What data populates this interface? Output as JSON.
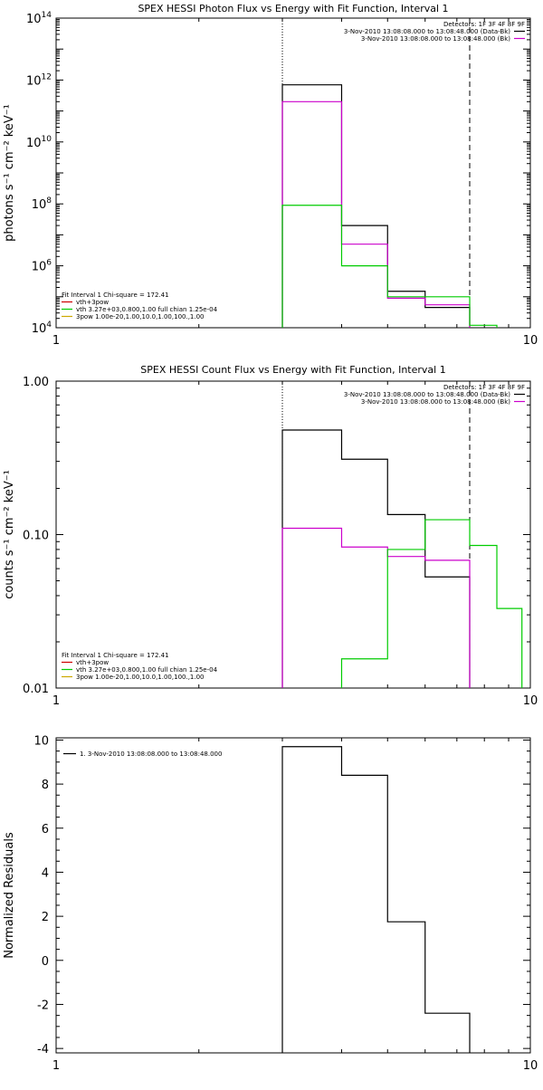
{
  "chart_data": [
    {
      "type": "line",
      "title": "SPEX HESSI Photon Flux vs Energy with Fit Function, Interval 1",
      "ylabel": "photons s⁻¹ cm⁻² keV⁻¹",
      "xlabel": "",
      "xscale": "log",
      "yscale": "log",
      "xlim": [
        1,
        10
      ],
      "ylim": [
        10000,
        100000000000000
      ],
      "x_ticks": [
        {
          "v": 1,
          "label": "1"
        },
        {
          "v": 10,
          "label": "10"
        }
      ],
      "y_ticks": [
        {
          "v": 10000,
          "base": "10",
          "exp": "4"
        },
        {
          "v": 1000000,
          "base": "10",
          "exp": "6"
        },
        {
          "v": 100000000,
          "base": "10",
          "exp": "8"
        },
        {
          "v": 10000000000,
          "base": "10",
          "exp": "10"
        },
        {
          "v": 1000000000000,
          "base": "10",
          "exp": "12"
        },
        {
          "v": 100000000000000,
          "base": "10",
          "exp": "14"
        }
      ],
      "vlines": [
        {
          "x": 3.0,
          "style": "dotted"
        },
        {
          "x": 7.45,
          "style": "dashed"
        }
      ],
      "legend_top_right": {
        "header": "Detectors: 1F 3F 4F 8F 9F",
        "entries": [
          {
            "text": "3-Nov-2010 13:08:08.000 to 13:08:48.000 (Data-Bk)",
            "color": "#000000"
          },
          {
            "text": "3-Nov-2010 13:08:08.000 to 13:08:48.000 (Bk)",
            "color": "#cc00cc"
          }
        ]
      },
      "legend_bottom_left": {
        "header": "Fit Interval 1    Chi-square = 172.41",
        "entries": [
          {
            "text": "vth+3pow",
            "color": "#cc0000"
          },
          {
            "text": "vth 3.27e+03,0.800,1.00  full chian 1.25e-04",
            "color": "#00cc00"
          },
          {
            "text": "3pow 1.00e-20,1.00,10.0,1.00,100.,1.00",
            "color": "#ccaa00"
          }
        ]
      },
      "series": [
        {
          "color": "#000000",
          "edges": [
            3.0,
            4.0,
            5.0,
            6.0,
            7.45
          ],
          "values": [
            700000000000,
            20000000,
            150000,
            45000
          ]
        },
        {
          "color": "#cc00cc",
          "edges": [
            3.0,
            4.0,
            5.0,
            6.0,
            7.45
          ],
          "values": [
            200000000000,
            5000000,
            90000,
            55000
          ]
        },
        {
          "color": "#00cc00",
          "edges": [
            3.0,
            4.0,
            5.0,
            6.0,
            7.45,
            8.5
          ],
          "values": [
            90000000,
            1000000,
            100000,
            100000,
            12000
          ]
        }
      ]
    },
    {
      "type": "line",
      "title": "SPEX HESSI Count Flux vs Energy with Fit Function, Interval 1",
      "ylabel": "counts s⁻¹ cm⁻² keV⁻¹",
      "xlabel": "",
      "xscale": "log",
      "yscale": "log",
      "xlim": [
        1,
        10
      ],
      "ylim": [
        0.01,
        1.0
      ],
      "x_ticks": [
        {
          "v": 1,
          "label": "1"
        },
        {
          "v": 10,
          "label": "10"
        }
      ],
      "y_ticks": [
        {
          "v": 0.01,
          "label": "0.01"
        },
        {
          "v": 0.1,
          "label": "0.10"
        },
        {
          "v": 1.0,
          "label": "1.00"
        }
      ],
      "vlines": [
        {
          "x": 3.0,
          "style": "dotted"
        },
        {
          "x": 7.45,
          "style": "dashed"
        }
      ],
      "legend_top_right": {
        "header": "Detectors: 1F 3F 4F 8F 9F",
        "entries": [
          {
            "text": "3-Nov-2010 13:08:08.000 to 13:08:48.000 (Data-Bk)",
            "color": "#000000"
          },
          {
            "text": "3-Nov-2010 13:08:08.000 to 13:08:48.000 (Bk)",
            "color": "#cc00cc"
          }
        ]
      },
      "legend_bottom_left": {
        "header": "Fit Interval 1    Chi-square = 172.41",
        "entries": [
          {
            "text": "vth+3pow",
            "color": "#cc0000"
          },
          {
            "text": "vth 3.27e+03,0.800,1.00  full chian 1.25e-04",
            "color": "#00cc00"
          },
          {
            "text": "3pow 1.00e-20,1.00,10.0,1.00,100.,1.00",
            "color": "#ccaa00"
          }
        ]
      },
      "series": [
        {
          "color": "#000000",
          "edges": [
            3.0,
            4.0,
            5.0,
            6.0,
            7.45
          ],
          "values": [
            0.48,
            0.31,
            0.135,
            0.053
          ]
        },
        {
          "color": "#cc00cc",
          "edges": [
            3.0,
            4.0,
            5.0,
            6.0,
            7.45
          ],
          "values": [
            0.11,
            0.083,
            0.072,
            0.068
          ]
        },
        {
          "color": "#00cc00",
          "edges": [
            4.0,
            5.0,
            6.0,
            7.45,
            8.5,
            9.6
          ],
          "values": [
            0.0155,
            0.08,
            0.125,
            0.085,
            0.033
          ]
        }
      ]
    },
    {
      "type": "line",
      "title": "",
      "ylabel": "Normalized Residuals",
      "xlabel": "",
      "xscale": "log",
      "yscale": "linear",
      "xlim": [
        1,
        10
      ],
      "ylim": [
        -4.2,
        10.1
      ],
      "x_ticks": [
        {
          "v": 1,
          "label": "1"
        },
        {
          "v": 10,
          "label": "10"
        }
      ],
      "y_ticks": [
        {
          "v": -4,
          "label": "-4"
        },
        {
          "v": -2,
          "label": "-2"
        },
        {
          "v": 0,
          "label": "0"
        },
        {
          "v": 2,
          "label": "2"
        },
        {
          "v": 4,
          "label": "4"
        },
        {
          "v": 6,
          "label": "6"
        },
        {
          "v": 8,
          "label": "8"
        },
        {
          "v": 10,
          "label": "10"
        }
      ],
      "vlines": [],
      "legend_top_left": {
        "header": "",
        "entries": [
          {
            "text": "1.  3-Nov-2010 13:08:08.000 to 13:08:48.000",
            "color": "#000000"
          }
        ]
      },
      "series": [
        {
          "color": "#000000",
          "edges": [
            3.0,
            4.0,
            5.0,
            6.0,
            7.45
          ],
          "values": [
            9.7,
            8.4,
            1.75,
            -2.4
          ],
          "drop_to_min": true
        }
      ]
    }
  ]
}
